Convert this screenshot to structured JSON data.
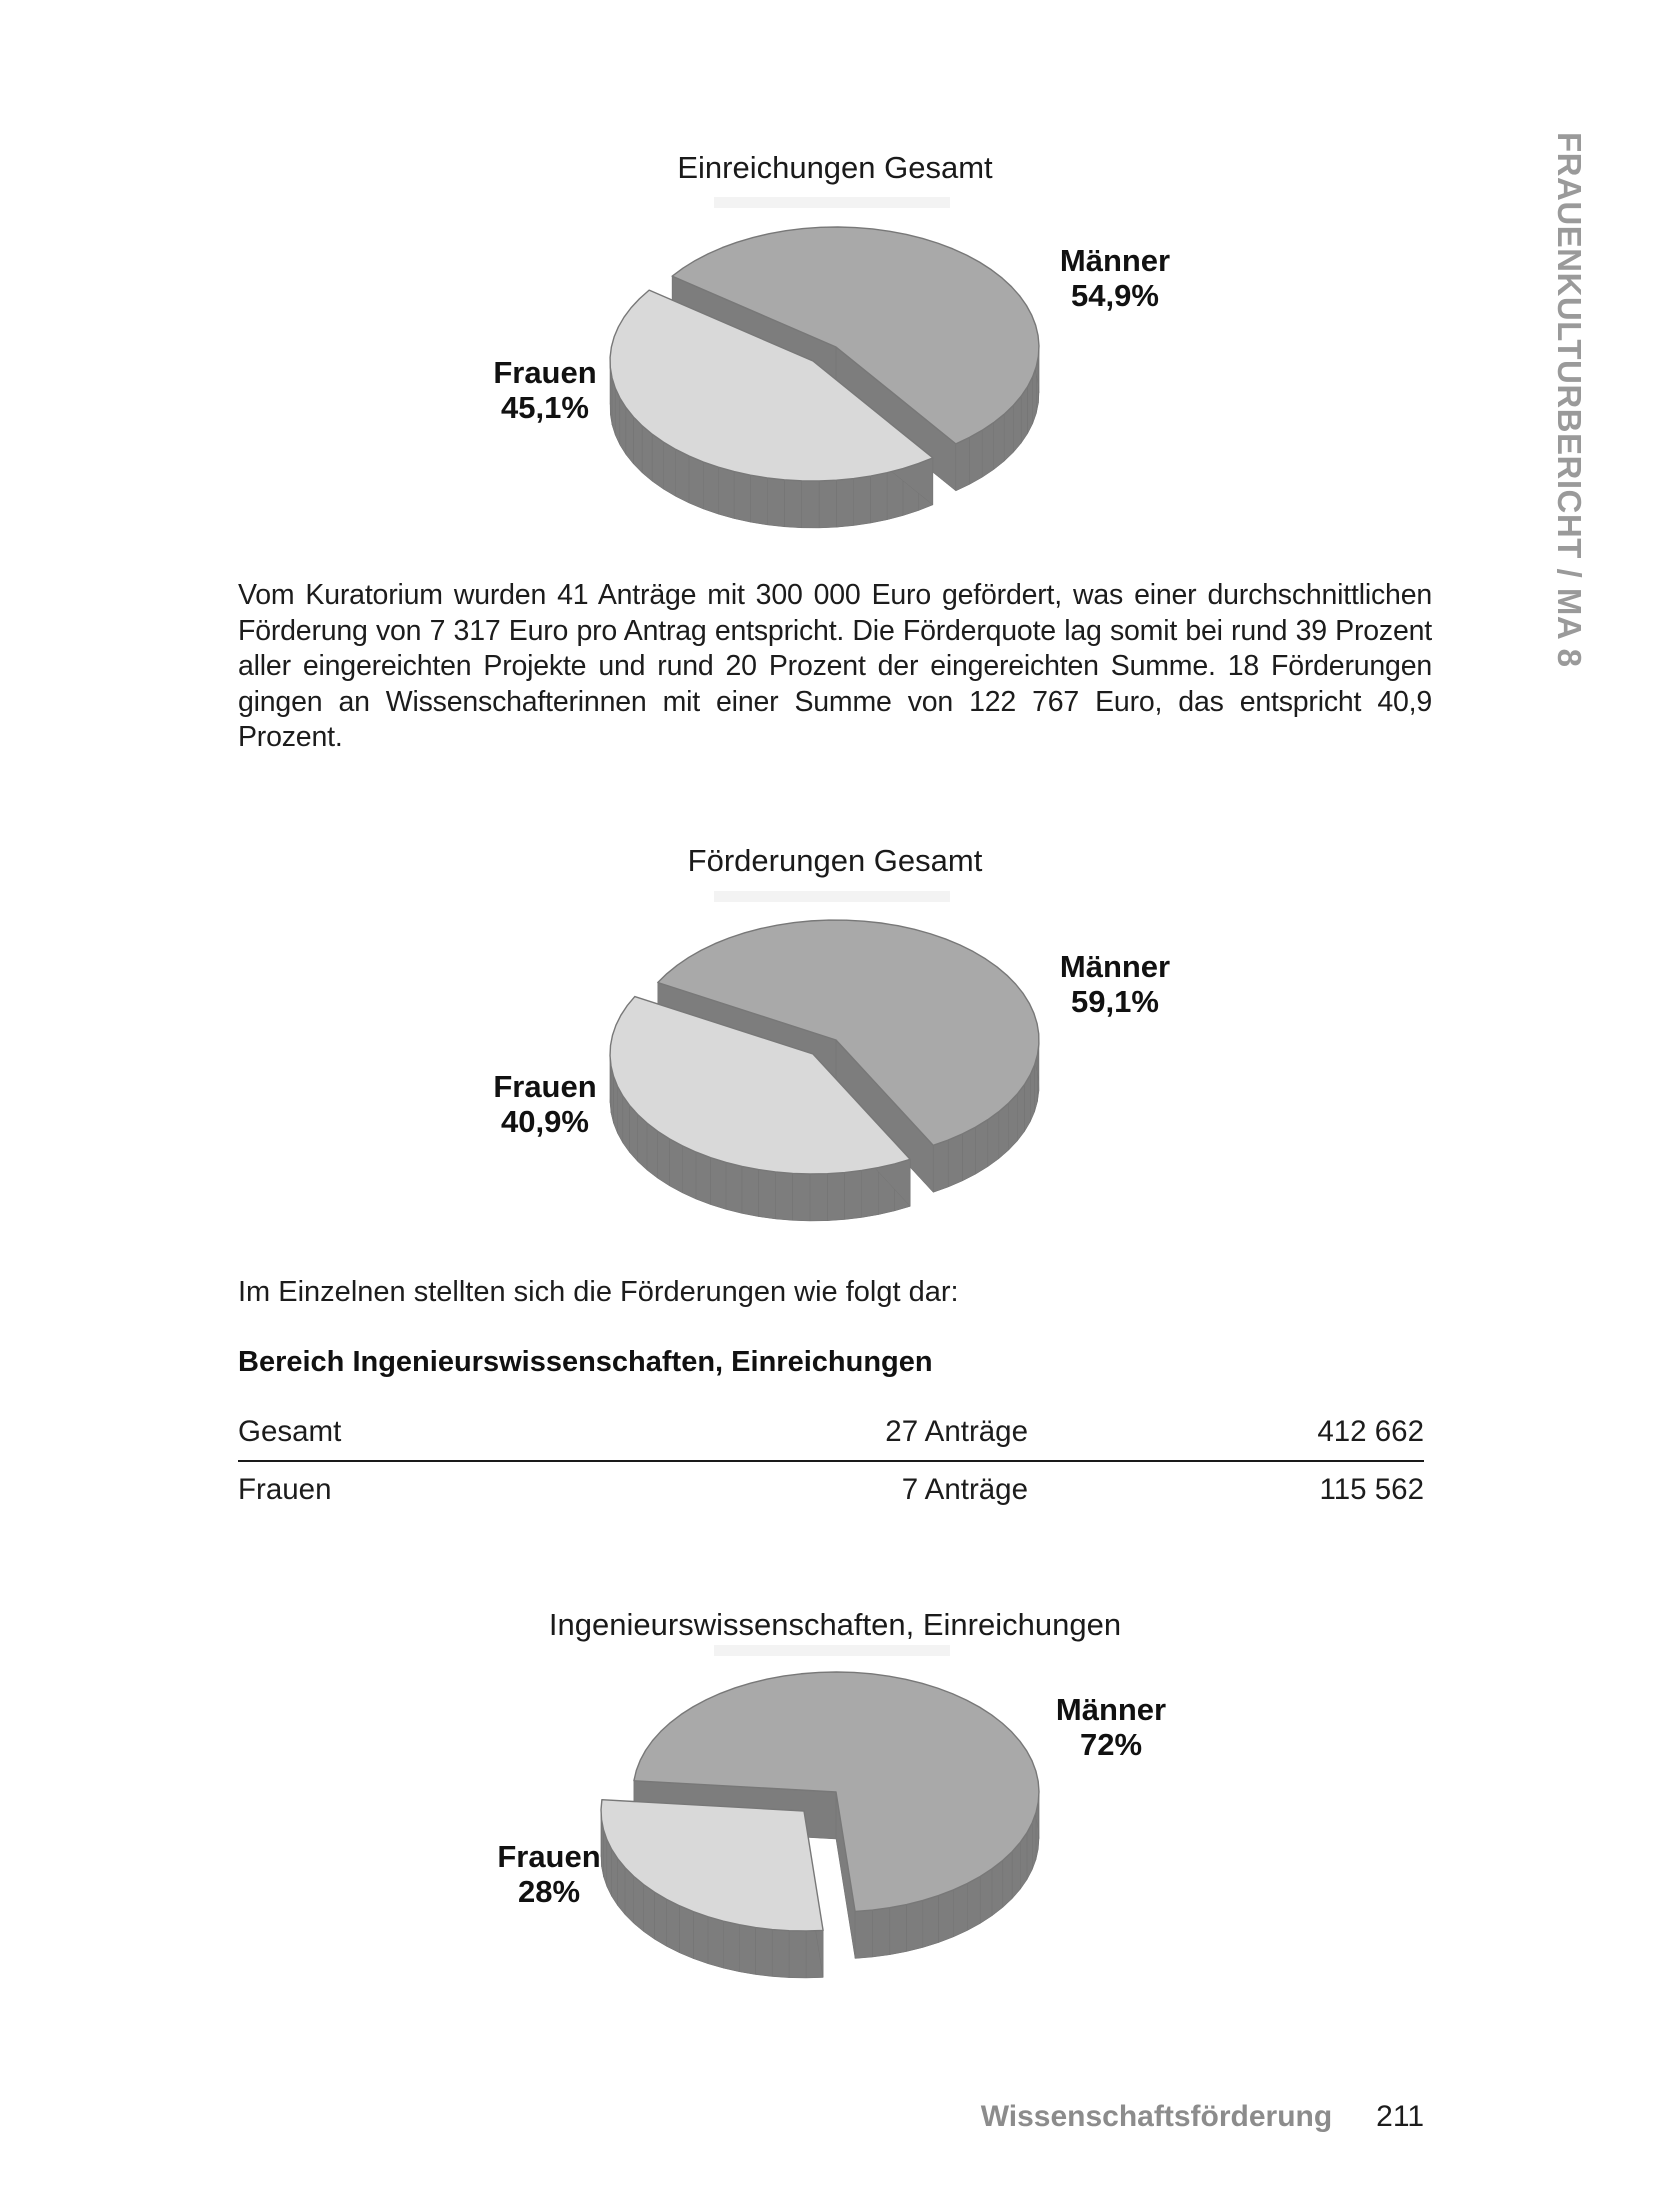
{
  "sidebar": {
    "text": "FRAUENKULTURBERICHT / MA 8"
  },
  "paragraph": "Vom Kuratorium wurden 41 Anträge mit 300 000 Euro gefördert, was einer durchschnittlichen Förderung von 7 317 Euro pro Antrag entspricht. Die Förderquote lag somit bei rund 39 Prozent aller eingereichten Projekte und rund 20 Prozent der eingereichten Summe. 18 Förderungen gingen an Wissenschafterinnen mit einer Summe von 122 767 Euro, das entspricht 40,9 Prozent.",
  "intro_line": "Im Einzelnen stellten sich die Förderungen wie folgt dar:",
  "table": {
    "heading": "Bereich Ingenieurswissenschaften, Einreichungen",
    "rows": [
      {
        "label": "Gesamt",
        "applications": "27 Anträge",
        "amount": "412 662"
      },
      {
        "label": "Frauen",
        "applications": "7 Anträge",
        "amount": "115 562"
      }
    ]
  },
  "footer": {
    "section": "Wissenschaftsförderung",
    "page_number": "211"
  },
  "chart_data": [
    {
      "type": "pie",
      "title": "Einreichungen Gesamt",
      "categories": [
        "Männer",
        "Frauen"
      ],
      "values": [
        54.9,
        45.1
      ],
      "value_labels": [
        "54,9%",
        "45,1%"
      ],
      "unit": "%",
      "legend_position": "none",
      "style": "3d-exploded"
    },
    {
      "type": "pie",
      "title": "Förderungen Gesamt",
      "categories": [
        "Männer",
        "Frauen"
      ],
      "values": [
        59.1,
        40.9
      ],
      "value_labels": [
        "59,1%",
        "40,9%"
      ],
      "unit": "%",
      "legend_position": "none",
      "style": "3d-exploded"
    },
    {
      "type": "pie",
      "title": "Ingenieurswissenschaften, Einreichungen",
      "categories": [
        "Männer",
        "Frauen"
      ],
      "values": [
        72,
        28
      ],
      "value_labels": [
        "72%",
        "28%"
      ],
      "unit": "%",
      "legend_position": "none",
      "style": "3d-exploded"
    }
  ],
  "colors": {
    "slice_maenner": "#a9a9a9",
    "slice_frauen": "#d9d9d9",
    "pie_side": "#7d7d7d",
    "pie_outline": "#787878",
    "sidebar_gray": "#9a9a9a",
    "footer_gray": "#8c8c8c",
    "text": "#1c1c1c",
    "table_rule": "#1a1a1a"
  }
}
